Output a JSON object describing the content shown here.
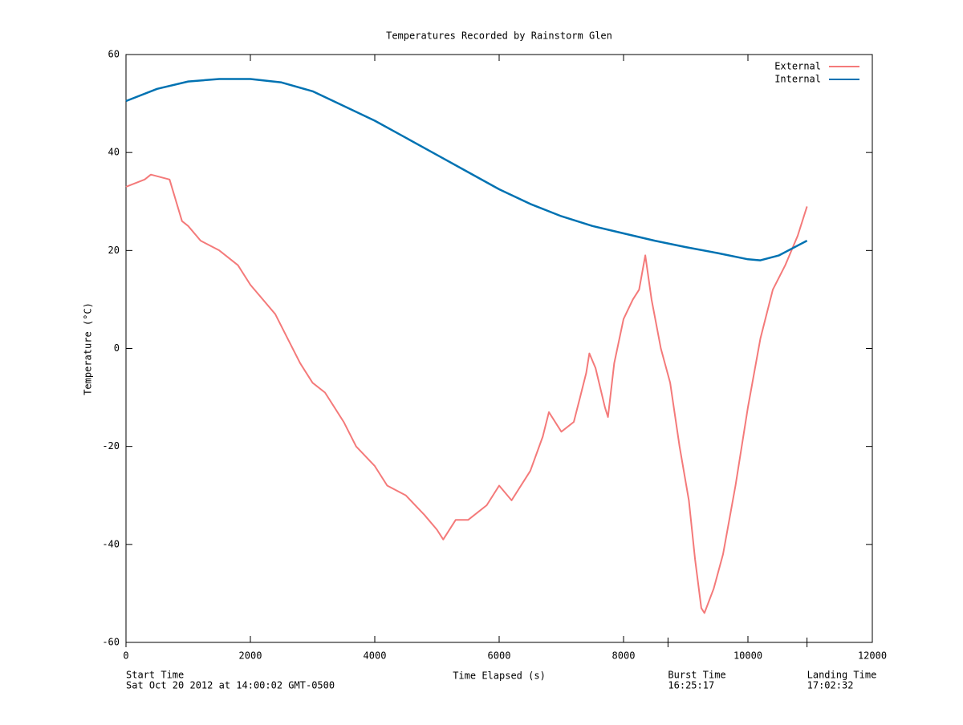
{
  "chart_data": {
    "type": "line",
    "title": "Temperatures Recorded by Rainstorm Glen",
    "x_label": "Time Elapsed (s)",
    "y_label": "Temperature (°C)",
    "xlim": [
      0,
      12000
    ],
    "xticks": [
      0,
      2000,
      4000,
      6000,
      8000,
      10000,
      12000
    ],
    "ylim": [
      -60,
      60
    ],
    "yticks": [
      -60,
      -40,
      -20,
      0,
      20,
      40,
      60
    ],
    "grid": false,
    "legend": "top-right",
    "series": [
      {
        "name": "External",
        "color": "#f47a7a",
        "x": [
          0,
          300,
          400,
          700,
          900,
          1000,
          1200,
          1500,
          1800,
          2000,
          2200,
          2400,
          2600,
          2800,
          3000,
          3200,
          3500,
          3700,
          4000,
          4200,
          4500,
          4800,
          5000,
          5100,
          5300,
          5500,
          5800,
          6000,
          6200,
          6500,
          6700,
          6800,
          7000,
          7200,
          7300,
          7400,
          7450,
          7550,
          7700,
          7750,
          7850,
          8000,
          8150,
          8250,
          8350,
          8450,
          8600,
          8750,
          8900,
          9050,
          9150,
          9250,
          9300,
          9450,
          9600,
          9800,
          10000,
          10200,
          10400,
          10600,
          10800,
          10950
        ],
        "values": [
          33,
          34.5,
          35.5,
          34.5,
          26,
          25,
          22,
          20,
          17,
          13,
          10,
          7,
          2,
          -3,
          -7,
          -9,
          -15,
          -20,
          -24,
          -28,
          -30,
          -34,
          -37,
          -39,
          -35,
          -35,
          -32,
          -28,
          -31,
          -25,
          -18,
          -13,
          -17,
          -15,
          -10,
          -5,
          -1,
          -4,
          -12,
          -14,
          -3,
          6,
          10,
          12,
          19,
          10,
          0,
          -7,
          -20,
          -31,
          -43,
          -53,
          -54,
          -49,
          -42,
          -28,
          -12,
          2,
          12,
          17,
          23,
          29
        ]
      },
      {
        "name": "Internal",
        "color": "#0072b2",
        "x": [
          0,
          500,
          1000,
          1500,
          2000,
          2500,
          3000,
          3500,
          4000,
          4500,
          5000,
          5500,
          6000,
          6500,
          7000,
          7500,
          8000,
          8500,
          9000,
          9500,
          10000,
          10200,
          10500,
          10800,
          10950
        ],
        "values": [
          50.5,
          53,
          54.5,
          55,
          55,
          54.3,
          52.5,
          49.5,
          46.5,
          43,
          39.5,
          36,
          32.5,
          29.5,
          27,
          25,
          23.5,
          22,
          20.7,
          19.5,
          18.2,
          18,
          19,
          21,
          22
        ]
      }
    ],
    "annotations": [
      {
        "x": 0,
        "label": "Start Time",
        "text": "Sat Oct 20 2012 at 14:00:02 GMT-0500"
      },
      {
        "x": 8715,
        "label": "Burst Time",
        "text": "16:25:17"
      },
      {
        "x": 10950,
        "label": "Landing Time",
        "text": "17:02:32"
      }
    ]
  }
}
